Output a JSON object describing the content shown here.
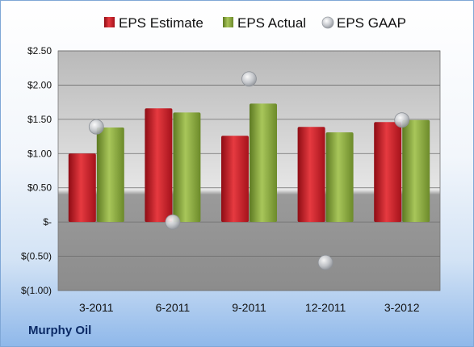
{
  "company": "Murphy Oil",
  "colors": {
    "estimate": "#c8202a",
    "actual": "#8aaa3c",
    "gaap": "#c9ccd1"
  },
  "chart_data": {
    "type": "bar",
    "categories": [
      "3-2011",
      "6-2011",
      "9-2011",
      "12-2011",
      "3-2012"
    ],
    "series": [
      {
        "name": "EPS Estimate",
        "kind": "bar",
        "values": [
          1.0,
          1.66,
          1.26,
          1.39,
          1.46
        ]
      },
      {
        "name": "EPS Actual",
        "kind": "bar",
        "values": [
          1.38,
          1.6,
          1.73,
          1.31,
          1.49
        ]
      },
      {
        "name": "EPS GAAP",
        "kind": "scatter",
        "values": [
          1.39,
          0.0,
          2.09,
          -0.59,
          1.49
        ]
      }
    ],
    "ylim": [
      -1.0,
      2.5
    ],
    "yticks": [
      2.5,
      2.0,
      1.5,
      1.0,
      0.5,
      0,
      -0.5,
      -1.0
    ],
    "ytick_labels": [
      "$2.50",
      "$2.00",
      "$1.50",
      "$1.00",
      "$0.50",
      "$-",
      "$(0.50)",
      "$(1.00)"
    ],
    "legend_position": "top",
    "grid": true
  }
}
